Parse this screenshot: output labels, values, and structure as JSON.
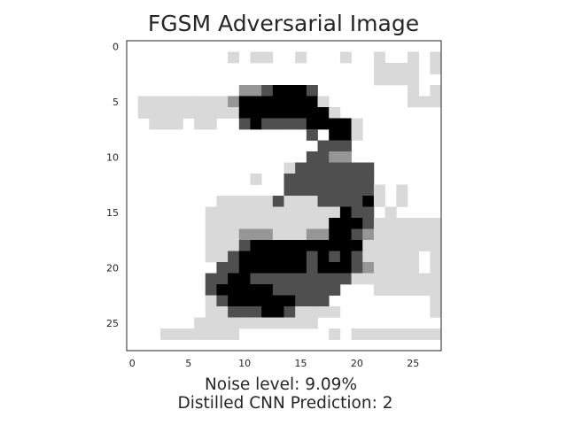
{
  "chart_data": {
    "type": "heatmap",
    "title": "FGSM Adversarial Image",
    "caption_lines": [
      "Noise level: 9.09%",
      "Distilled CNN Prediction: 2"
    ],
    "xlabel": "",
    "ylabel": "",
    "shape": [
      28,
      28
    ],
    "xlim": [
      -0.5,
      27.5
    ],
    "ylim": [
      27.5,
      -0.5
    ],
    "xticks": [
      0,
      5,
      10,
      15,
      20,
      25
    ],
    "yticks": [
      0,
      5,
      10,
      15,
      20,
      25
    ],
    "colormap": "gray_r",
    "value_scale": "0 = white, 4 = black",
    "grid": false,
    "pixels": [
      "0000000000000000000000000000",
      "0000000001011001000100100101",
      "0000000000000000000000111101",
      "0000000000000000000000111100",
      "0000000000223444300000000101",
      "0111111112444444410000000111",
      "0111111111444444441000000000",
      "0011101100343333444410000000",
      "0000000000000000304410000000",
      "0000000000000000033300000000",
      "0000000000000000332200000000",
      "0000000000000013333333000000",
      "0000000000010033333333000000",
      "0000000000000033333333101000",
      "0000000011111311133334101000",
      "0000000111111111111433010000",
      "0000000111111111114443111111",
      "0000000111222111224432111111",
      "0000000111344444444441111111",
      "0000000113444444343431111101",
      "0000000033444444344432111101",
      "0000000334433333333311111111",
      "0000000344444333333000111111",
      "0000000134444443330000000001",
      "0000000113334431111000000001",
      "0000001111111111100000000000",
      "0001111111000000001011111111",
      "0000000000000000000000000000"
    ]
  }
}
